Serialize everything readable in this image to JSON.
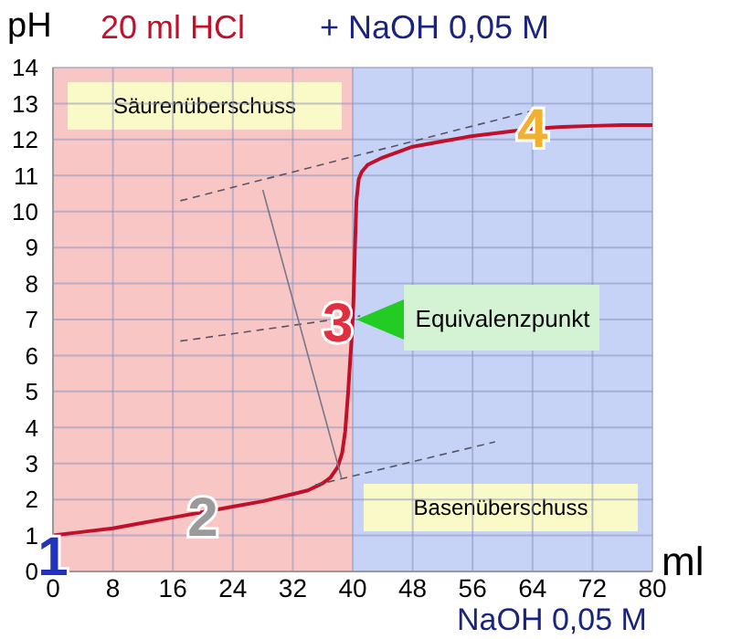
{
  "chart_data": {
    "type": "line",
    "title": "20 ml HCl",
    "subtitle": "+ NaOH 0,05 M",
    "xlabel": "NaOH 0,05 M",
    "ylabel": "pH",
    "xlim": [
      0,
      80
    ],
    "xticks": [
      0,
      8,
      16,
      24,
      32,
      40,
      48,
      56,
      64,
      72,
      80
    ],
    "ylim": [
      0,
      14
    ],
    "yticks": [
      0,
      1,
      2,
      3,
      4,
      5,
      6,
      7,
      8,
      9,
      10,
      11,
      12,
      13,
      14
    ],
    "grid": true,
    "series": [
      {
        "color": "#c0102a",
        "x": [
          0,
          4,
          8,
          12,
          16,
          20,
          24,
          28,
          32,
          34,
          36,
          37,
          38,
          38.6,
          39,
          39.4,
          39.7,
          39.9,
          40,
          40.1,
          40.3,
          40.5,
          40.8,
          41.2,
          42,
          44,
          48,
          52,
          56,
          60,
          64,
          68,
          72,
          76,
          80
        ],
        "values": [
          1,
          1.1,
          1.2,
          1.35,
          1.5,
          1.65,
          1.8,
          1.95,
          2.15,
          2.25,
          2.45,
          2.6,
          2.9,
          3.3,
          3.9,
          5,
          6,
          6.6,
          7,
          7.5,
          9,
          10.3,
          10.9,
          11.1,
          11.3,
          11.5,
          11.8,
          11.95,
          12.1,
          12.2,
          12.3,
          12.35,
          12.38,
          12.4,
          12.4
        ]
      },
      {
        "type": "line",
        "line_style": "dashed",
        "color": "#555566",
        "x": [
          17,
          64
        ],
        "values": [
          10.3,
          12.8
        ]
      },
      {
        "type": "line",
        "line_style": "dashed",
        "color": "#555566",
        "x": [
          35,
          59
        ],
        "values": [
          2.4,
          3.6
        ]
      },
      {
        "type": "line",
        "line_style": "dashed",
        "color": "#555566",
        "x": [
          17,
          41
        ],
        "values": [
          6.4,
          7.1
        ]
      },
      {
        "type": "line",
        "color": "#777788",
        "x": [
          28,
          38.5
        ],
        "values": [
          10.6,
          2.6
        ]
      }
    ],
    "bands": [
      {
        "axis": "x",
        "from": 0,
        "to": 40,
        "label": "Säurenüberschuss",
        "color": "#f9c6c6"
      },
      {
        "axis": "x",
        "from": 40,
        "to": 80,
        "label": "Basenüberschuss",
        "color": "#c6d2f6"
      }
    ],
    "annotations": [
      {
        "text": "1",
        "x": 0,
        "y": 0.5
      },
      {
        "text": "2",
        "x": 20,
        "y": 1.6
      },
      {
        "text": "3",
        "x": 38,
        "y": 7
      },
      {
        "text": "4",
        "x": 64,
        "y": 12.4
      },
      {
        "text": "Equivalenzpunkt",
        "x": 40,
        "y": 7
      },
      "ml"
    ]
  }
}
